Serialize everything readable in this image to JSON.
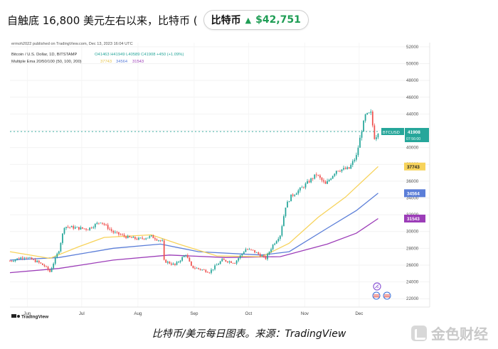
{
  "headline": {
    "text": "自触底 16,800 美元左右以来，比特币 (",
    "pill_label": "比特币",
    "pill_arrow": "▲",
    "pill_price": "$42,751"
  },
  "caption": "比特币/美元每日图表。来源：TradingView",
  "brand": {
    "name": "金色财经"
  },
  "chart_header": {
    "publisher": "ermoh2022 published on TradingView.com, Dec 13, 2023 16:04 UTC",
    "symbol_line": "Bitcoin / U.S. Dollar, 1D, BITSTAMP",
    "ohlc": "O41463 H41949 L40589 C41908 +450 (+1.09%)",
    "ema_line_label": "Multiple Ema 20/50/100 (50, 100, 200)",
    "ema_values": [
      "37743",
      "34564",
      "31543"
    ]
  },
  "price_tags": {
    "symbol": "BTCUSD",
    "price": "41908",
    "countdown": "07:56:00",
    "ema50": "37743",
    "ema100": "34564",
    "ema200": "31543"
  },
  "tv_logo": "TradingView",
  "colors": {
    "up": "#26a69a",
    "down": "#ef5350",
    "ema50": "#f7d35b",
    "ema100": "#5b7ed8",
    "ema200": "#9c3db8",
    "price_tag": "#26a69a"
  },
  "chart_data": {
    "type": "candlestick",
    "xlabels": [
      "Jun",
      "Jul",
      "Aug",
      "Sep",
      "Oct",
      "Nov",
      "Dec"
    ],
    "y_ticks": [
      22000,
      24000,
      26000,
      28000,
      30000,
      32000,
      34000,
      36000,
      38000,
      40000,
      42000,
      44000,
      46000,
      48000,
      50000,
      52000
    ],
    "ylim": [
      21000,
      52500
    ],
    "price_path": [
      [
        "2023-05-24",
        26500
      ],
      [
        "2023-06-01",
        27000
      ],
      [
        "2023-06-08",
        26400
      ],
      [
        "2023-06-12",
        25900
      ],
      [
        "2023-06-15",
        25200
      ],
      [
        "2023-06-20",
        27800
      ],
      [
        "2023-06-23",
        30600
      ],
      [
        "2023-07-01",
        30400
      ],
      [
        "2023-07-06",
        30300
      ],
      [
        "2023-07-13",
        31200
      ],
      [
        "2023-07-20",
        29900
      ],
      [
        "2023-07-28",
        29300
      ],
      [
        "2023-08-03",
        29100
      ],
      [
        "2023-08-10",
        29400
      ],
      [
        "2023-08-16",
        28800
      ],
      [
        "2023-08-17",
        26500
      ],
      [
        "2023-08-23",
        26000
      ],
      [
        "2023-08-29",
        27300
      ],
      [
        "2023-09-01",
        25800
      ],
      [
        "2023-09-11",
        25200
      ],
      [
        "2023-09-18",
        26600
      ],
      [
        "2023-09-25",
        26300
      ],
      [
        "2023-10-01",
        27900
      ],
      [
        "2023-10-05",
        27700
      ],
      [
        "2023-10-12",
        26800
      ],
      [
        "2023-10-16",
        28400
      ],
      [
        "2023-10-20",
        29600
      ],
      [
        "2023-10-23",
        33000
      ],
      [
        "2023-10-26",
        34200
      ],
      [
        "2023-11-01",
        35200
      ],
      [
        "2023-11-09",
        36800
      ],
      [
        "2023-11-14",
        35600
      ],
      [
        "2023-11-20",
        37300
      ],
      [
        "2023-11-27",
        37500
      ],
      [
        "2023-12-01",
        39000
      ],
      [
        "2023-12-04",
        42100
      ],
      [
        "2023-12-06",
        43800
      ],
      [
        "2023-12-09",
        44100
      ],
      [
        "2023-12-11",
        41200
      ],
      [
        "2023-12-12",
        41400
      ],
      [
        "2023-12-13",
        41908
      ]
    ],
    "ema50_path": [
      [
        "2023-05-24",
        27600
      ],
      [
        "2023-06-15",
        26800
      ],
      [
        "2023-07-01",
        28200
      ],
      [
        "2023-07-15",
        29300
      ],
      [
        "2023-08-10",
        29600
      ],
      [
        "2023-08-25",
        28500
      ],
      [
        "2023-09-15",
        27100
      ],
      [
        "2023-10-10",
        27000
      ],
      [
        "2023-10-25",
        28600
      ],
      [
        "2023-11-10",
        31700
      ],
      [
        "2023-11-25",
        34100
      ],
      [
        "2023-12-13",
        37743
      ]
    ],
    "ema100_path": [
      [
        "2023-05-24",
        26600
      ],
      [
        "2023-06-20",
        26900
      ],
      [
        "2023-07-20",
        28000
      ],
      [
        "2023-08-15",
        28500
      ],
      [
        "2023-09-05",
        27600
      ],
      [
        "2023-10-10",
        27200
      ],
      [
        "2023-10-25",
        27600
      ],
      [
        "2023-11-15",
        30400
      ],
      [
        "2023-12-01",
        32500
      ],
      [
        "2023-12-13",
        34564
      ]
    ],
    "ema200_path": [
      [
        "2023-05-24",
        25100
      ],
      [
        "2023-06-20",
        25600
      ],
      [
        "2023-07-20",
        26600
      ],
      [
        "2023-08-20",
        27200
      ],
      [
        "2023-09-20",
        26900
      ],
      [
        "2023-10-20",
        27000
      ],
      [
        "2023-11-15",
        28500
      ],
      [
        "2023-12-01",
        29800
      ],
      [
        "2023-12-13",
        31543
      ]
    ]
  }
}
